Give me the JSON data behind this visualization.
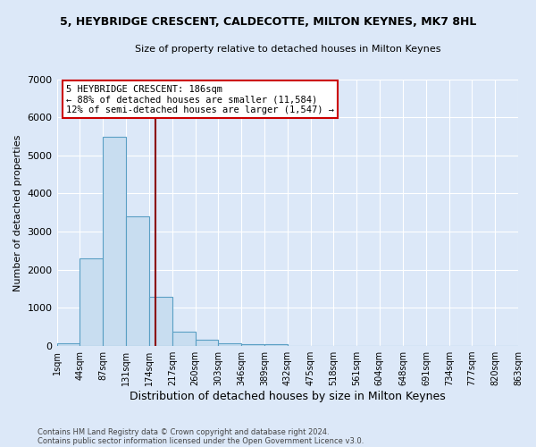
{
  "title": "5, HEYBRIDGE CRESCENT, CALDECOTTE, MILTON KEYNES, MK7 8HL",
  "subtitle": "Size of property relative to detached houses in Milton Keynes",
  "xlabel": "Distribution of detached houses by size in Milton Keynes",
  "ylabel": "Number of detached properties",
  "footnote1": "Contains HM Land Registry data © Crown copyright and database right 2024.",
  "footnote2": "Contains public sector information licensed under the Open Government Licence v3.0.",
  "annotation_line1": "5 HEYBRIDGE CRESCENT: 186sqm",
  "annotation_line2": "← 88% of detached houses are smaller (11,584)",
  "annotation_line3": "12% of semi-detached houses are larger (1,547) →",
  "bin_edges": [
    1,
    44,
    87,
    131,
    174,
    217,
    260,
    303,
    346,
    389,
    432,
    475,
    518,
    561,
    604,
    648,
    691,
    734,
    777,
    820,
    863
  ],
  "bin_counts": [
    75,
    2300,
    5500,
    3400,
    1300,
    375,
    160,
    75,
    50,
    60,
    0,
    0,
    0,
    0,
    0,
    0,
    0,
    0,
    0,
    0
  ],
  "bar_color": "#c8ddf0",
  "bar_edgecolor": "#5a9fc4",
  "vline_color": "#8b0000",
  "vline_x": 186,
  "annotation_box_facecolor": "#ffffff",
  "annotation_box_edgecolor": "#cc0000",
  "ylim": [
    0,
    7000
  ],
  "background_color": "#dce8f8",
  "tick_labels": [
    "1sqm",
    "44sqm",
    "87sqm",
    "131sqm",
    "174sqm",
    "217sqm",
    "260sqm",
    "303sqm",
    "346sqm",
    "389sqm",
    "432sqm",
    "475sqm",
    "518sqm",
    "561sqm",
    "604sqm",
    "648sqm",
    "691sqm",
    "734sqm",
    "777sqm",
    "820sqm",
    "863sqm"
  ]
}
